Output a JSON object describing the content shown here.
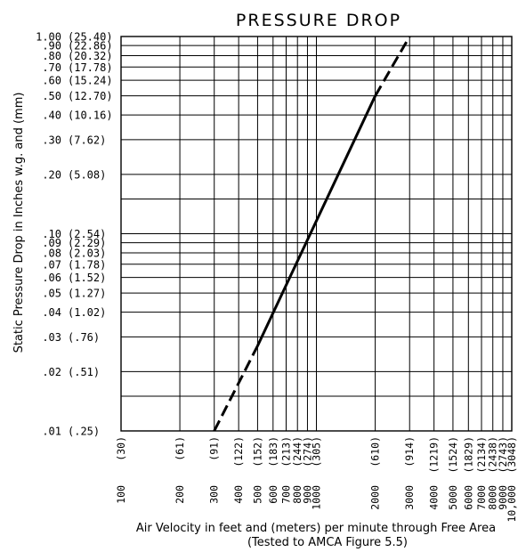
{
  "chart_data": {
    "type": "line",
    "title": "PRESSURE DROP",
    "xlabel": "Air Velocity in feet and (meters) per minute through Free Area",
    "xlabel_note": "(Tested to AMCA Figure 5.5)",
    "ylabel": "Static Pressure Drop in Inches w.g. and (mm)",
    "xscale": "log",
    "yscale": "log",
    "xlim": [
      100,
      10000
    ],
    "ylim": [
      0.01,
      1.0
    ],
    "grid": true,
    "x_ticks": [
      {
        "fpm": "100",
        "m": "(30)"
      },
      {
        "fpm": "200",
        "m": "(61)"
      },
      {
        "fpm": "300",
        "m": "(91)"
      },
      {
        "fpm": "400",
        "m": "(122)"
      },
      {
        "fpm": "500",
        "m": "(152)"
      },
      {
        "fpm": "600",
        "m": "(183)"
      },
      {
        "fpm": "700",
        "m": "(213)"
      },
      {
        "fpm": "800",
        "m": "(244)"
      },
      {
        "fpm": "900",
        "m": "(274)"
      },
      {
        "fpm": "1000",
        "m": "(305)"
      },
      {
        "fpm": "2000",
        "m": "(610)"
      },
      {
        "fpm": "3000",
        "m": "(914)"
      },
      {
        "fpm": "4000",
        "m": "(1219)"
      },
      {
        "fpm": "5000",
        "m": "(1524)"
      },
      {
        "fpm": "6000",
        "m": "(1829)"
      },
      {
        "fpm": "7000",
        "m": "(2134)"
      },
      {
        "fpm": "8000",
        "m": "(2438)"
      },
      {
        "fpm": "9000",
        "m": "(2743)"
      },
      {
        "fpm": "10,000",
        "m": "(3048)"
      }
    ],
    "y_ticks": [
      {
        "in": ".01",
        "mm": "(.25)"
      },
      {
        "in": ".02",
        "mm": "(.51)"
      },
      {
        "in": ".03",
        "mm": "(.76)"
      },
      {
        "in": ".04",
        "mm": "(1.02)"
      },
      {
        "in": ".05",
        "mm": "(1.27)"
      },
      {
        "in": ".06",
        "mm": "(1.52)"
      },
      {
        "in": ".07",
        "mm": "(1.78)"
      },
      {
        "in": ".08",
        "mm": "(2.03)"
      },
      {
        "in": ".09",
        "mm": "(2.29)"
      },
      {
        "in": ".10",
        "mm": "(2.54)"
      },
      {
        "in": ".20",
        "mm": "(5.08)"
      },
      {
        "in": ".30",
        "mm": "(7.62)"
      },
      {
        "in": ".40",
        "mm": "(10.16)"
      },
      {
        "in": ".50",
        "mm": "(12.70)"
      },
      {
        "in": ".60",
        "mm": "(15.24)"
      },
      {
        "in": ".70",
        "mm": "(17.78)"
      },
      {
        "in": ".80",
        "mm": "(20.32)"
      },
      {
        "in": ".90",
        "mm": "(22.86)"
      },
      {
        "in": "1.00",
        "mm": "(25.40)"
      }
    ],
    "series": [
      {
        "style": "dashed",
        "x": [
          300,
          500
        ],
        "y": [
          0.01,
          0.027
        ]
      },
      {
        "style": "solid",
        "x": [
          500,
          2000
        ],
        "y": [
          0.027,
          0.5
        ]
      },
      {
        "style": "dashed",
        "x": [
          2000,
          3000
        ],
        "y": [
          0.5,
          1.0
        ]
      }
    ]
  }
}
